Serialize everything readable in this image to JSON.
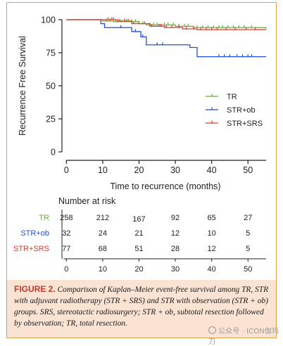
{
  "chart_data": {
    "type": "line",
    "subtype": "kaplan-meier",
    "ylabel": "Recurrence Free Survival",
    "xlabel": "Time to recurrence (months)",
    "xlim": [
      -2,
      55
    ],
    "ylim": [
      0,
      100
    ],
    "x_ticks": [
      0,
      10,
      20,
      30,
      40,
      50
    ],
    "y_ticks": [
      0,
      25,
      50,
      75,
      100
    ],
    "legend_position": "center-right",
    "grid": false,
    "series": [
      {
        "name": "TR",
        "color": "#5ab52e",
        "steps": [
          [
            0,
            100
          ],
          [
            10,
            99
          ],
          [
            13,
            98.5
          ],
          [
            20,
            97
          ],
          [
            22,
            96
          ],
          [
            30,
            95
          ],
          [
            35,
            94
          ],
          [
            55,
            93
          ]
        ],
        "censor": [
          11,
          12,
          13.5,
          15,
          16.5,
          18,
          19,
          21,
          23,
          24,
          25,
          27,
          28,
          29.5,
          31,
          32.5,
          33.5,
          36,
          37.5,
          39,
          40.5,
          42,
          43,
          44.5,
          46,
          47.5,
          49,
          51
        ]
      },
      {
        "name": "STR+ob",
        "color": "#1f4fd8",
        "steps": [
          [
            0,
            100
          ],
          [
            9.5,
            97
          ],
          [
            10.5,
            94
          ],
          [
            18,
            91
          ],
          [
            20.5,
            87
          ],
          [
            22,
            81
          ],
          [
            34,
            79
          ],
          [
            36,
            72
          ],
          [
            55,
            72
          ]
        ],
        "censor": [
          15,
          19,
          21,
          25,
          26.5,
          42,
          43.5,
          45,
          47,
          48.5,
          50,
          51
        ]
      },
      {
        "name": "STR+SRS",
        "color": "#e03b26",
        "steps": [
          [
            0,
            100
          ],
          [
            10,
            100
          ],
          [
            14,
            99
          ],
          [
            18,
            97
          ],
          [
            23,
            95
          ],
          [
            27,
            94
          ],
          [
            32,
            93
          ],
          [
            36,
            92.5
          ],
          [
            55,
            92.5
          ]
        ],
        "censor": [
          11.5,
          12.5,
          13,
          14.5,
          16,
          17,
          18.5,
          20,
          21.5,
          23.5,
          25.5,
          26,
          27.5,
          29,
          31,
          33,
          35,
          37,
          38.5,
          40,
          41.5,
          44,
          46.5,
          49.5,
          52
        ]
      }
    ],
    "risk_table": {
      "title": "Number at risk",
      "times": [
        "0",
        "10",
        "20",
        "30",
        "40",
        "50"
      ],
      "rows": [
        {
          "label": "TR",
          "color": "#5ab52e",
          "values": [
            "258",
            "212",
            "167",
            "92",
            "65",
            "27"
          ]
        },
        {
          "label": "STR+ob",
          "color": "#1f4fd8",
          "values": [
            "32",
            "24",
            "21",
            "12",
            "10",
            "5"
          ]
        },
        {
          "label": "STR+SRS",
          "color": "#e03b26",
          "values": [
            "77",
            "68",
            "51",
            "28",
            "12",
            "5"
          ]
        }
      ]
    }
  },
  "caption": {
    "label": "FIGURE 2.",
    "text": "Comparison of Kaplan–Meier event-free survival among TR, STR with adjuvant radiotherapy (STR + SRS) and STR with observation (STR + ob) groups. SRS, stereotactic radiosurgery; STR + ob, subtotal resection followed by observation; TR, total resection."
  },
  "watermark": {
    "text": "公众号 · ICON伽玛刀",
    "icon": "wechat-icon"
  }
}
